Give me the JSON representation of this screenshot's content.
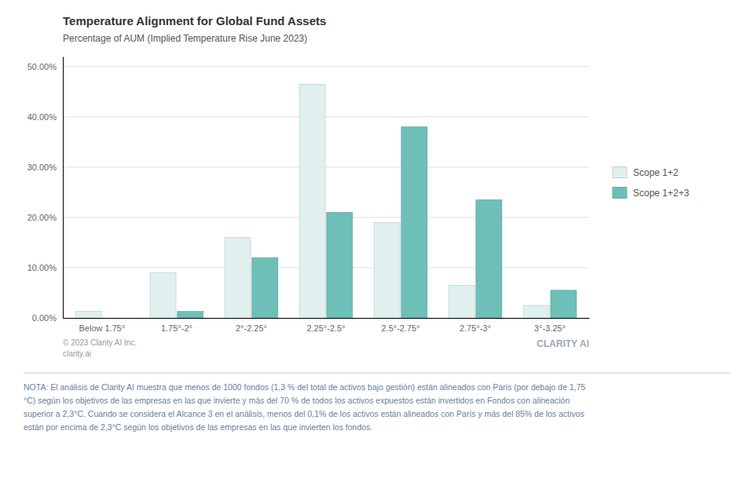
{
  "chart_data": {
    "type": "bar",
    "title": "Temperature Alignment for Global Fund Assets",
    "subtitle": "Percentage of AUM (Implied Temperature Rise June 2023)",
    "categories": [
      "Below 1.75°",
      "1.75°-2°",
      "2°-2.25°",
      "2.25°-2.5°",
      "2.5°-2.75°",
      "2.75°-3°",
      "3°-3.25°"
    ],
    "series": [
      {
        "name": "Scope 1+2",
        "color": "#dff0ee",
        "values": [
          1.3,
          9.0,
          16.0,
          46.5,
          19.0,
          6.5,
          2.5
        ]
      },
      {
        "name": "Scope 1+2+3",
        "color": "#6dbfb8",
        "values": [
          0.0,
          1.3,
          12.0,
          21.0,
          38.0,
          23.5,
          5.5
        ]
      }
    ],
    "ylim": [
      0,
      52
    ],
    "yticks": [
      {
        "value": 0,
        "label": "0.00%"
      },
      {
        "value": 10,
        "label": "10.00%"
      },
      {
        "value": 20,
        "label": "20.00%"
      },
      {
        "value": 30,
        "label": "30.00%"
      },
      {
        "value": 40,
        "label": "40.00%"
      },
      {
        "value": 50,
        "label": "50.00%"
      }
    ],
    "grid": true,
    "legend": "right",
    "annotations": [
      "© 2023 Clarity AI Inc.\nclarity.ai",
      "CLARITY AI",
      "NOTA: El análisis de Clarity AI muestra que menos de 1000 fondos (1,3 % del total de activos bajo gestión) están alineados con Paris (por debajo de 1,75\n°C) según los objetivos de las empresas en las que invierte y más del 70 % de todos los activos expuestos están invertidos en Fondos con alineación\nsuperior a 2,3°C. Cuando se considera el Alcance 3 en el análisis, menos del 0,1% de los activos están alineados con París y más del 85% de los activos\nestán por encima de 2,3°C según los objetivos de las empresas en las que invierten los fondos."
    ]
  }
}
